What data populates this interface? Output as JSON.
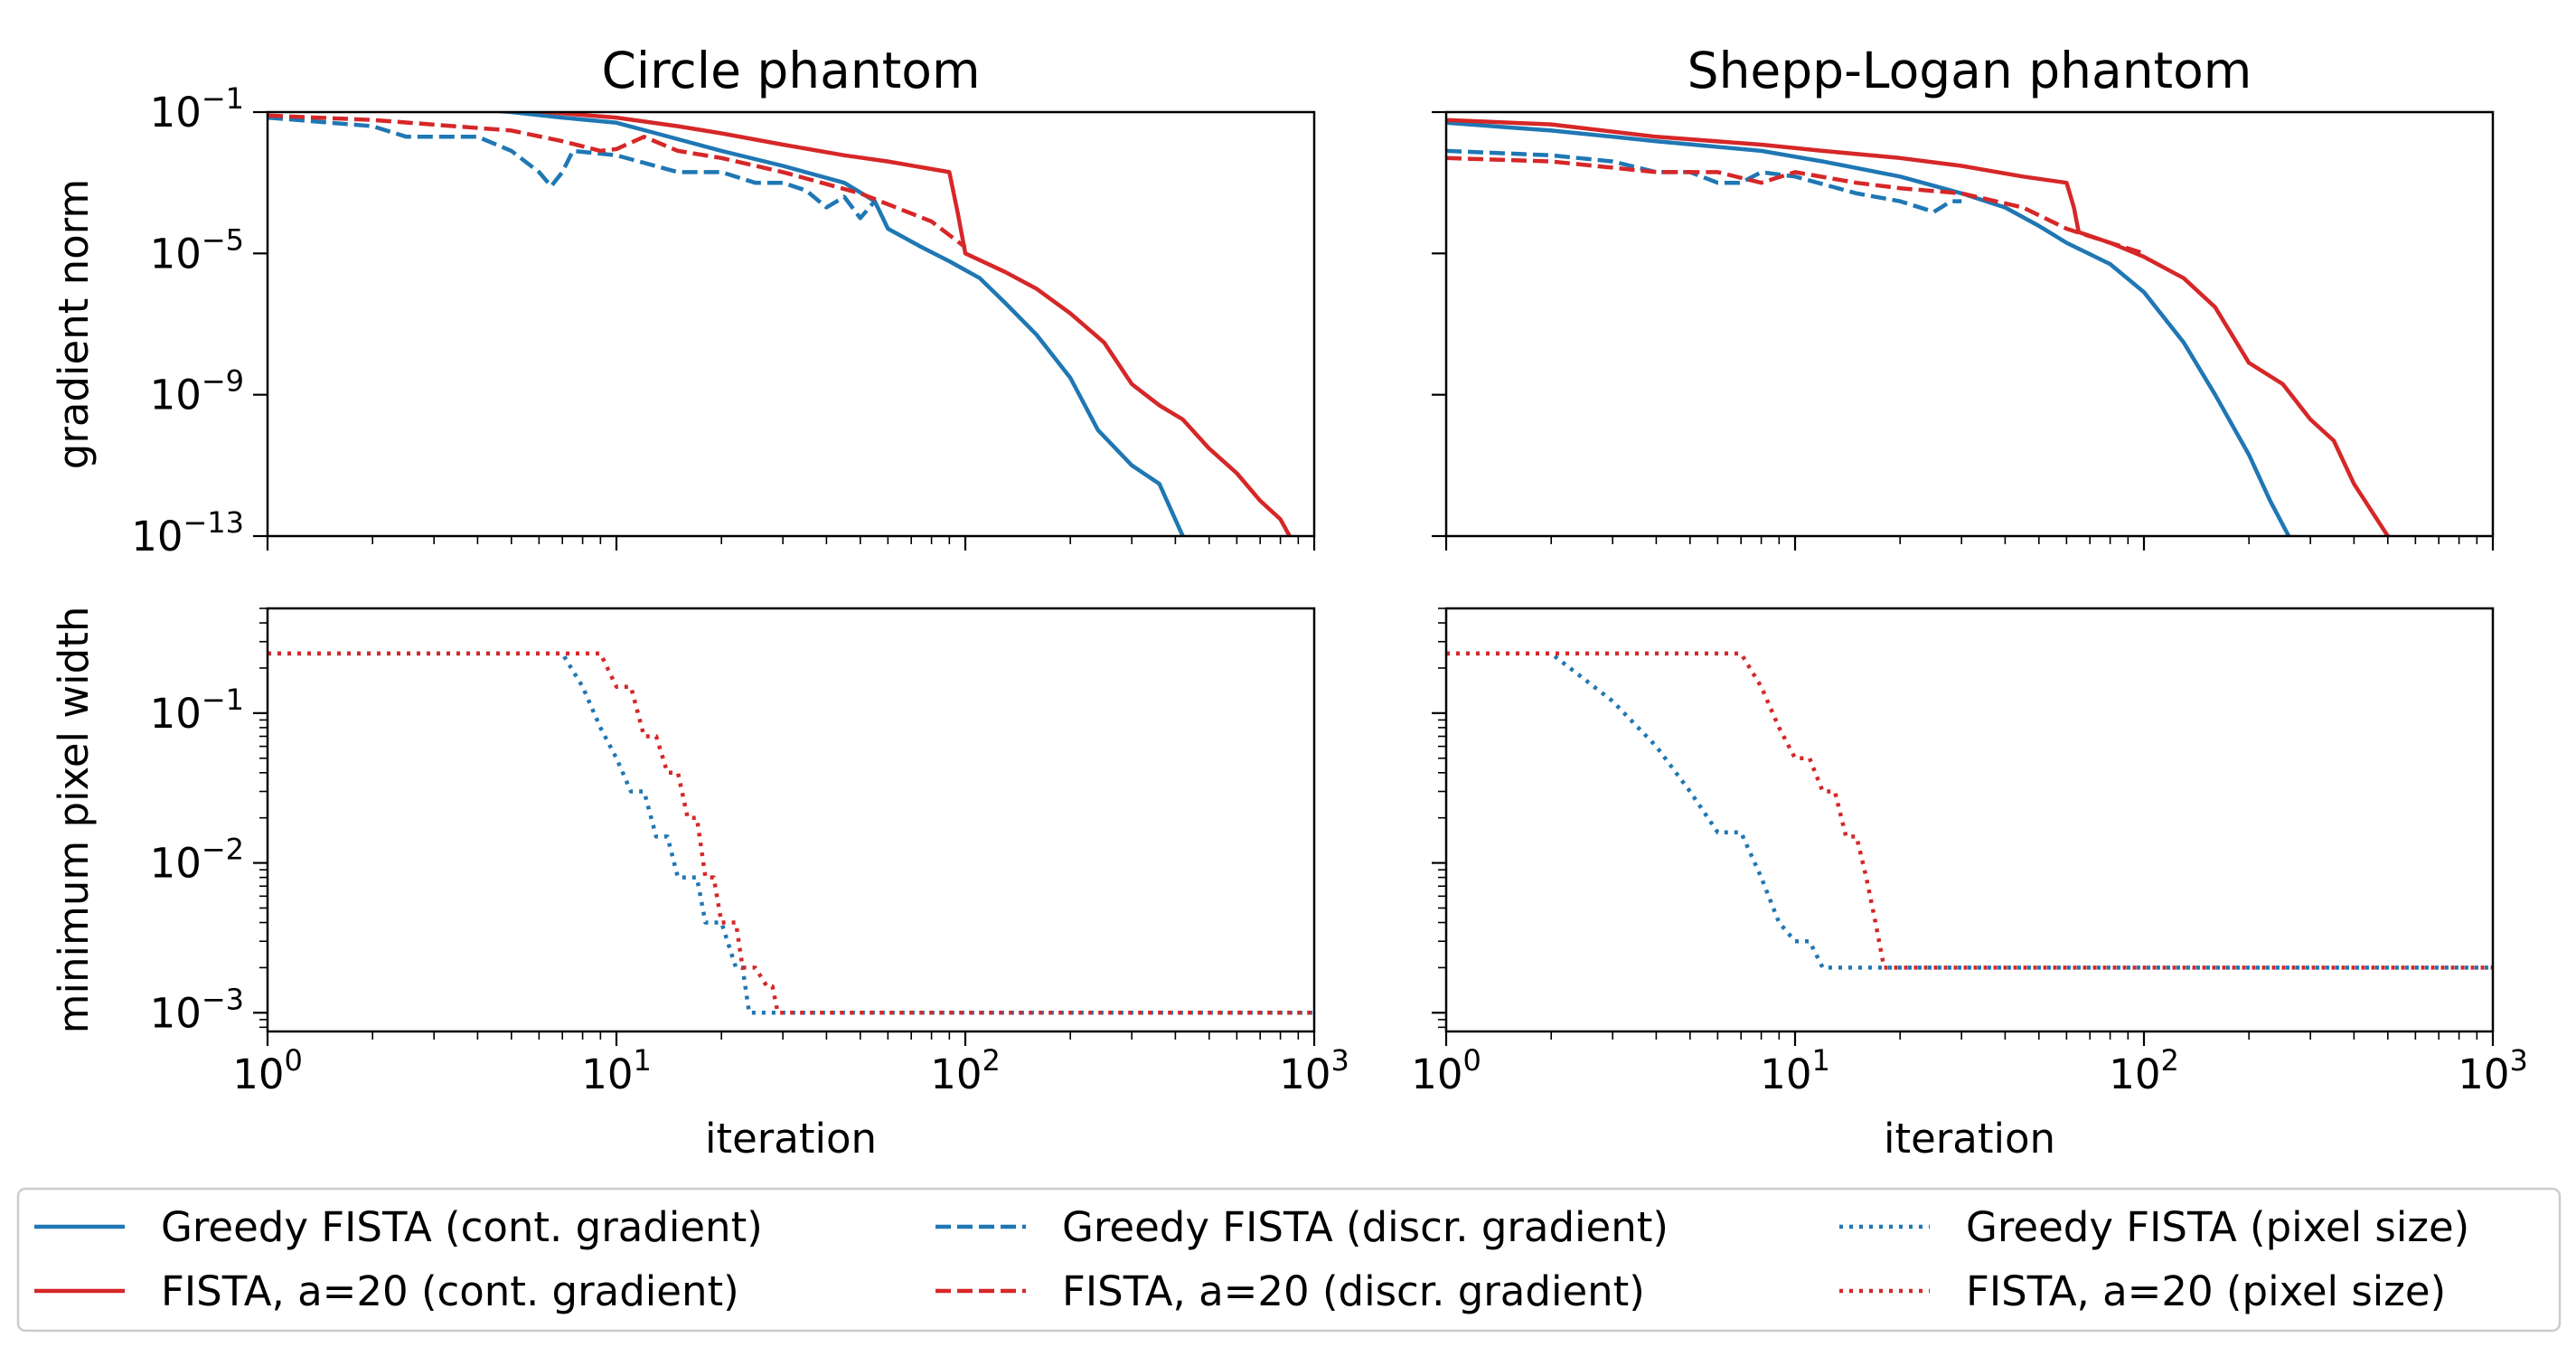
{
  "colors": {
    "greedy": "#1f77b4",
    "fista": "#d62728"
  },
  "legend": {
    "placement": "bottom",
    "entries": [
      {
        "label": "Greedy FISTA (cont. gradient)",
        "color": "#1f77b4",
        "style": "solid"
      },
      {
        "label": "FISTA, a=20 (cont. gradient)",
        "color": "#d62728",
        "style": "solid"
      },
      {
        "label": "Greedy FISTA (discr. gradient)",
        "color": "#1f77b4",
        "style": "dashed"
      },
      {
        "label": "FISTA, a=20 (discr. gradient)",
        "color": "#d62728",
        "style": "dashed"
      },
      {
        "label": "Greedy FISTA (pixel size)",
        "color": "#1f77b4",
        "style": "dotted"
      },
      {
        "label": "FISTA, a=20 (pixel size)",
        "color": "#d62728",
        "style": "dotted"
      }
    ]
  },
  "chart_data": [
    {
      "type": "line",
      "panel": "top-left",
      "title": "Circle phantom",
      "xlabel": "",
      "ylabel": "gradient norm",
      "xscale": "log",
      "yscale": "log",
      "xlim": [
        1,
        1000
      ],
      "ylim": [
        1e-13,
        0.1
      ],
      "yticks": [
        0.1,
        1e-05,
        1e-09,
        1e-13
      ],
      "yticklabels": [
        [
          "10",
          "−1"
        ],
        [
          "10",
          "−5"
        ],
        [
          "10",
          "−9"
        ],
        [
          "10",
          "−13"
        ]
      ],
      "xticklabels": [],
      "series": [
        {
          "style": "solid",
          "color": "#1f77b4",
          "x": [
            1,
            2,
            5,
            7,
            10,
            13,
            20,
            30,
            45,
            55,
            60,
            75,
            90,
            110,
            130,
            160,
            200,
            240,
            300,
            360,
            420
          ],
          "y": [
            0.28,
            0.2,
            0.1,
            0.07,
            0.05,
            0.025,
            0.008,
            0.003,
            0.001,
            0.0003,
            5e-05,
            1.5e-05,
            6e-06,
            2e-06,
            4e-07,
            5e-08,
            3e-09,
            1e-10,
            1e-11,
            3e-12,
            1e-13
          ]
        },
        {
          "style": "dashed",
          "color": "#1f77b4",
          "x": [
            1,
            2,
            2.5,
            4,
            5,
            6,
            6.5,
            7,
            7.5,
            10,
            15,
            20,
            25,
            30,
            35,
            40,
            45,
            50,
            55
          ],
          "y": [
            0.07,
            0.04,
            0.02,
            0.02,
            0.008,
            0.002,
            0.0008,
            0.002,
            0.008,
            0.006,
            0.002,
            0.002,
            0.001,
            0.001,
            0.0006,
            0.0002,
            0.0004,
            0.0001,
            0.0003
          ]
        },
        {
          "style": "solid",
          "color": "#d62728",
          "x": [
            1,
            2,
            5,
            10,
            15,
            20,
            30,
            45,
            60,
            90,
            95,
            100,
            130,
            160,
            200,
            250,
            300,
            360,
            420,
            500,
            600,
            700,
            800,
            850
          ],
          "y": [
            0.3,
            0.25,
            0.12,
            0.07,
            0.04,
            0.025,
            0.012,
            0.006,
            0.004,
            0.002,
            0.00015,
            1e-05,
            3e-06,
            1e-06,
            2e-07,
            3e-08,
            2e-09,
            5e-10,
            2e-10,
            3e-11,
            6e-12,
            1e-12,
            3e-13,
            1e-13
          ]
        },
        {
          "style": "dashed",
          "color": "#d62728",
          "x": [
            1,
            2,
            5,
            7,
            9,
            10,
            12,
            15,
            20,
            30,
            50,
            80,
            100
          ],
          "y": [
            0.08,
            0.06,
            0.03,
            0.015,
            0.008,
            0.009,
            0.02,
            0.008,
            0.005,
            0.002,
            0.0005,
            8e-05,
            1.5e-05
          ]
        }
      ]
    },
    {
      "type": "line",
      "panel": "top-right",
      "title": "Shepp-Logan phantom",
      "xlabel": "",
      "ylabel": "",
      "xscale": "log",
      "yscale": "log",
      "xlim": [
        1,
        1000
      ],
      "ylim": [
        1e-13,
        0.1
      ],
      "yticks": [
        0.1,
        1e-05,
        1e-09,
        1e-13
      ],
      "yticklabels": [],
      "xticklabels": [],
      "series": [
        {
          "style": "solid",
          "color": "#1f77b4",
          "x": [
            1,
            2,
            4,
            8,
            12,
            20,
            30,
            40,
            50,
            60,
            80,
            100,
            130,
            160,
            200,
            230,
            260
          ],
          "y": [
            0.05,
            0.03,
            0.015,
            0.008,
            0.004,
            0.0015,
            0.0005,
            0.0002,
            6e-05,
            2e-05,
            5e-06,
            8e-07,
            3e-08,
            1e-09,
            2e-11,
            1e-12,
            1e-13
          ]
        },
        {
          "style": "dashed",
          "color": "#1f77b4",
          "x": [
            1,
            2,
            3,
            4,
            5,
            6,
            7,
            8,
            10,
            15,
            20,
            25,
            28,
            30
          ],
          "y": [
            0.008,
            0.006,
            0.004,
            0.002,
            0.002,
            0.001,
            0.001,
            0.002,
            0.0015,
            0.0005,
            0.0003,
            0.00015,
            0.0003,
            0.0003
          ]
        },
        {
          "style": "solid",
          "color": "#d62728",
          "x": [
            1,
            2,
            4,
            8,
            12,
            20,
            30,
            45,
            60,
            63,
            65,
            80,
            100,
            130,
            160,
            200,
            250,
            300,
            350,
            400,
            450,
            500
          ],
          "y": [
            0.06,
            0.045,
            0.02,
            0.012,
            0.008,
            0.005,
            0.003,
            0.0015,
            0.001,
            0.0002,
            4e-05,
            2e-05,
            8e-06,
            2e-06,
            3e-07,
            8e-09,
            2e-09,
            2e-10,
            5e-11,
            3e-12,
            5e-13,
            1e-13
          ]
        },
        {
          "style": "dashed",
          "color": "#d62728",
          "x": [
            1,
            2,
            4,
            6,
            8,
            10,
            15,
            20,
            30,
            45,
            60,
            80,
            100
          ],
          "y": [
            0.005,
            0.004,
            0.002,
            0.002,
            0.001,
            0.002,
            0.001,
            0.0007,
            0.0005,
            0.0002,
            5e-05,
            2e-05,
            1e-05
          ]
        }
      ]
    },
    {
      "type": "line",
      "panel": "bottom-left",
      "title": "",
      "xlabel": "iteration",
      "ylabel": "minimum pixel width",
      "xscale": "log",
      "yscale": "log",
      "xlim": [
        1,
        1000
      ],
      "ylim": [
        0.00075,
        0.5
      ],
      "yticks": [
        0.1,
        0.01,
        0.001
      ],
      "yticklabels": [
        [
          "10",
          "−1"
        ],
        [
          "10",
          "−2"
        ],
        [
          "10",
          "−3"
        ]
      ],
      "xticklabels": [
        [
          "10",
          "0"
        ],
        [
          "10",
          "1"
        ],
        [
          "10",
          "2"
        ],
        [
          "10",
          "3"
        ]
      ],
      "series": [
        {
          "style": "dotted",
          "color": "#1f77b4",
          "x": [
            1,
            7,
            8,
            9,
            10,
            11,
            12,
            13,
            14,
            15,
            17,
            18,
            20,
            22,
            23,
            24,
            1000
          ],
          "y": [
            0.25,
            0.25,
            0.15,
            0.08,
            0.05,
            0.03,
            0.03,
            0.015,
            0.015,
            0.008,
            0.008,
            0.004,
            0.004,
            0.002,
            0.002,
            0.001,
            0.001
          ]
        },
        {
          "style": "dotted",
          "color": "#d62728",
          "x": [
            1,
            9,
            10,
            11,
            12,
            13,
            14,
            15,
            16,
            17,
            18,
            19,
            20,
            21,
            22,
            23,
            24,
            25,
            27,
            28,
            29,
            1000
          ],
          "y": [
            0.25,
            0.25,
            0.15,
            0.15,
            0.07,
            0.07,
            0.04,
            0.04,
            0.02,
            0.02,
            0.008,
            0.008,
            0.004,
            0.004,
            0.004,
            0.002,
            0.002,
            0.002,
            0.0015,
            0.0015,
            0.001,
            0.001
          ]
        }
      ]
    },
    {
      "type": "line",
      "panel": "bottom-right",
      "title": "",
      "xlabel": "iteration",
      "ylabel": "",
      "xscale": "log",
      "yscale": "log",
      "xlim": [
        1,
        1000
      ],
      "ylim": [
        0.00075,
        0.5
      ],
      "yticks": [
        0.1,
        0.01,
        0.001
      ],
      "yticklabels": [],
      "xticklabels": [
        [
          "10",
          "0"
        ],
        [
          "10",
          "1"
        ],
        [
          "10",
          "2"
        ],
        [
          "10",
          "3"
        ]
      ],
      "series": [
        {
          "style": "dotted",
          "color": "#1f77b4",
          "x": [
            1,
            2,
            3,
            4,
            5,
            6,
            7,
            8,
            9,
            10,
            11,
            12,
            1000
          ],
          "y": [
            0.25,
            0.25,
            0.12,
            0.06,
            0.03,
            0.016,
            0.016,
            0.008,
            0.004,
            0.003,
            0.003,
            0.002,
            0.002
          ]
        },
        {
          "style": "dotted",
          "color": "#d62728",
          "x": [
            1,
            7,
            8,
            9,
            10,
            11,
            12,
            13,
            14,
            15,
            16,
            17,
            18,
            1000
          ],
          "y": [
            0.25,
            0.25,
            0.15,
            0.08,
            0.05,
            0.05,
            0.03,
            0.03,
            0.015,
            0.015,
            0.008,
            0.004,
            0.002,
            0.002
          ]
        }
      ]
    }
  ]
}
